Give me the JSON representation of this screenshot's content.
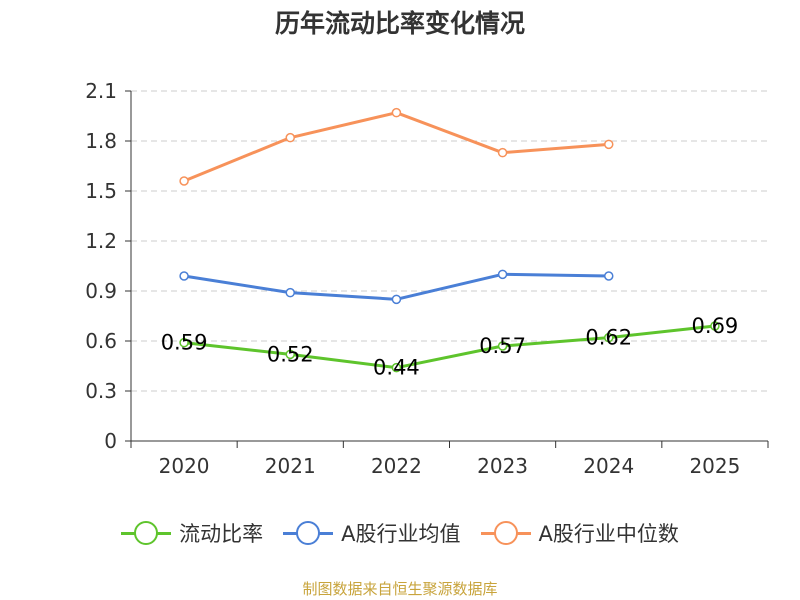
{
  "chart_data": {
    "type": "line",
    "title": "历年流动比率变化情况",
    "categories": [
      "2020",
      "2021",
      "2022",
      "2023",
      "2024",
      "2025"
    ],
    "ylim": [
      0,
      2.1
    ],
    "yticks": [
      "0",
      "0.3",
      "0.6",
      "0.9",
      "1.2",
      "1.5",
      "1.8",
      "2.1"
    ],
    "grid": true,
    "legend_position": "bottom",
    "series": [
      {
        "name": "流动比率",
        "color": "#5ec42c",
        "values": [
          0.59,
          0.52,
          0.44,
          0.57,
          0.62,
          0.69
        ],
        "labels": [
          "0.59",
          "0.52",
          "0.44",
          "0.57",
          "0.62",
          "0.69"
        ]
      },
      {
        "name": "A股行业均值",
        "color": "#4a7fd6",
        "values": [
          0.99,
          0.89,
          0.85,
          1.0,
          0.99,
          null
        ]
      },
      {
        "name": "A股行业中位数",
        "color": "#f7925a",
        "values": [
          1.56,
          1.82,
          1.97,
          1.73,
          1.78,
          null
        ]
      }
    ]
  },
  "source_text": "制图数据来自恒生聚源数据库"
}
